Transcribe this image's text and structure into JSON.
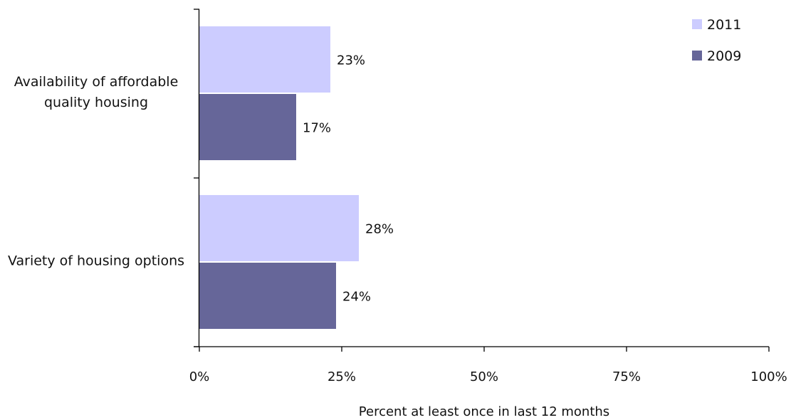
{
  "chart_data": {
    "type": "bar",
    "orientation": "horizontal",
    "categories": [
      "Availability of affordable quality housing",
      "Variety of housing options"
    ],
    "series": [
      {
        "name": "2011",
        "values": [
          23,
          28
        ],
        "color": "#ccccff"
      },
      {
        "name": "2009",
        "values": [
          17,
          24
        ],
        "color": "#666699"
      }
    ],
    "data_labels": [
      [
        "23%",
        "28%"
      ],
      [
        "17%",
        "24%"
      ]
    ],
    "xlim": [
      0,
      100
    ],
    "x_ticks": [
      0,
      25,
      50,
      75,
      100
    ],
    "x_tick_labels": [
      "0%",
      "25%",
      "50%",
      "75%",
      "100%"
    ],
    "xlabel": "Percent at least once in last 12 months",
    "ylabel": "",
    "legend_position": "top-right",
    "grid": false
  }
}
